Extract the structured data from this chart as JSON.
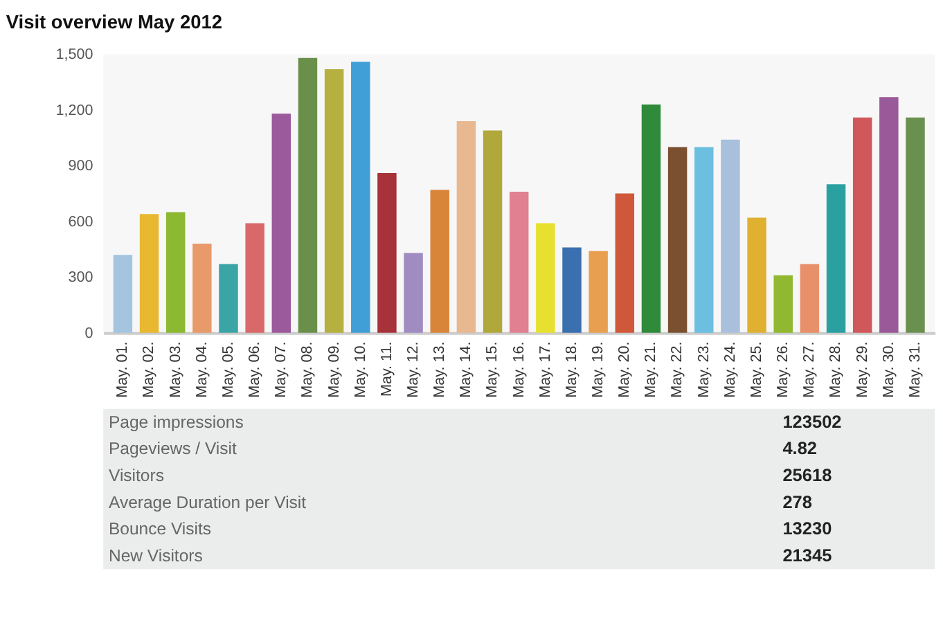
{
  "chart_data": {
    "type": "bar",
    "title": "Visit overview May 2012",
    "categories": [
      "May. 01.",
      "May. 02.",
      "May. 03.",
      "May. 04.",
      "May. 05.",
      "May. 06.",
      "May. 07.",
      "May. 08.",
      "May. 09.",
      "May. 10.",
      "May. 11.",
      "May. 12.",
      "May. 13.",
      "May. 14.",
      "May. 15.",
      "May. 16.",
      "May. 17.",
      "May. 18.",
      "May. 19.",
      "May. 20.",
      "May. 21.",
      "May. 22.",
      "May. 23.",
      "May. 24.",
      "May. 25.",
      "May. 26.",
      "May. 27.",
      "May. 28.",
      "May. 29.",
      "May. 30.",
      "May. 31."
    ],
    "values": [
      420,
      640,
      650,
      480,
      370,
      590,
      1180,
      1480,
      1420,
      1460,
      860,
      430,
      770,
      1140,
      1090,
      760,
      590,
      460,
      440,
      750,
      1230,
      1000,
      1000,
      1040,
      620,
      310,
      370,
      800,
      1160,
      1270,
      1160
    ],
    "colors": [
      "#a4c4e0",
      "#e8b830",
      "#8db832",
      "#e99a6a",
      "#3aa5a5",
      "#d9686a",
      "#9b5a9b",
      "#6a8f4a",
      "#b5b040",
      "#3f9fd6",
      "#a8323a",
      "#a08cc0",
      "#d8853a",
      "#e8b890",
      "#b0a83a",
      "#e08090",
      "#e8e030",
      "#3a6fb0",
      "#e8a050",
      "#d0583a",
      "#2f8a3a",
      "#7a5030",
      "#6cbfe0",
      "#a8c0dc",
      "#e0b030",
      "#90b830",
      "#e8906a",
      "#2aa0a0",
      "#d0585a",
      "#9a5a9a",
      "#6a9050"
    ],
    "ylim": [
      0,
      1500
    ],
    "yticks": [
      0,
      300,
      600,
      900,
      {
        "value": 1200,
        "label": "1,200"
      },
      {
        "value": 1500,
        "label": "1,500"
      }
    ],
    "grid": false,
    "annotations": [
      "Page impressions",
      "123502",
      "Pageviews / Visit",
      "4.82",
      "Visitors",
      "25618",
      "Average Duration per Visit",
      "278",
      "Bounce Visits",
      "13230",
      "New Visitors",
      "21345"
    ]
  }
}
